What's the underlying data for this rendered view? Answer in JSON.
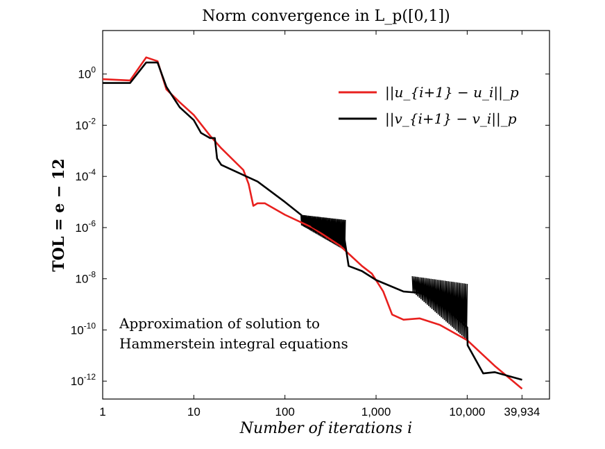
{
  "chart_data": {
    "type": "line",
    "title": "Norm convergence in L_p([0,1])",
    "xlabel": "Number of iterations i",
    "ylabel": "TOL = e − 12",
    "xscale": "log",
    "yscale": "log",
    "xlim": [
      1,
      80000
    ],
    "ylim_exp": [
      -12.7,
      1.7
    ],
    "x_ticks": [
      {
        "value": 1,
        "label": "1"
      },
      {
        "value": 10,
        "label": "10"
      },
      {
        "value": 100,
        "label": "100"
      },
      {
        "value": 1000,
        "label": "1,000"
      },
      {
        "value": 10000,
        "label": "10,000"
      },
      {
        "value": 39934,
        "label": "39,934"
      }
    ],
    "y_ticks": [
      {
        "exp": 0,
        "base": "10",
        "sup": "0"
      },
      {
        "exp": -2,
        "base": "10",
        "sup": "-2"
      },
      {
        "exp": -4,
        "base": "10",
        "sup": "-4"
      },
      {
        "exp": -6,
        "base": "10",
        "sup": "-6"
      },
      {
        "exp": -8,
        "base": "10",
        "sup": "-8"
      },
      {
        "exp": -10,
        "base": "10",
        "sup": "-10"
      },
      {
        "exp": -12,
        "base": "10",
        "sup": "-12"
      }
    ],
    "legend_position": "top-right",
    "annotation": [
      "Approximation of solution to",
      "Hammerstein integral equations"
    ],
    "series": [
      {
        "name": "||u_{i+1} − u_i||_p",
        "color": "#e8201e",
        "log10_y_points": [
          [
            1,
            -0.2
          ],
          [
            2,
            -0.25
          ],
          [
            3,
            0.65
          ],
          [
            4,
            0.5
          ],
          [
            5,
            -0.6
          ],
          [
            7,
            -1.1
          ],
          [
            10,
            -1.6
          ],
          [
            15,
            -2.4
          ],
          [
            20,
            -2.9
          ],
          [
            35,
            -3.75
          ],
          [
            40,
            -4.3
          ],
          [
            45,
            -5.15
          ],
          [
            50,
            -5.05
          ],
          [
            60,
            -5.05
          ],
          [
            100,
            -5.5
          ],
          [
            200,
            -6.0
          ],
          [
            400,
            -6.7
          ],
          [
            700,
            -7.5
          ],
          [
            900,
            -7.8
          ],
          [
            1200,
            -8.5
          ],
          [
            1500,
            -9.4
          ],
          [
            2000,
            -9.6
          ],
          [
            3000,
            -9.55
          ],
          [
            5000,
            -9.8
          ],
          [
            10000,
            -10.4
          ],
          [
            20000,
            -11.4
          ],
          [
            40000,
            -12.3
          ]
        ]
      },
      {
        "name": "||v_{i+1} − v_i||_p",
        "color": "#000000",
        "log10_y_points": [
          [
            1,
            -0.35
          ],
          [
            2,
            -0.35
          ],
          [
            3,
            0.45
          ],
          [
            4,
            0.45
          ],
          [
            5,
            -0.5
          ],
          [
            7,
            -1.3
          ],
          [
            10,
            -1.8
          ],
          [
            12,
            -2.3
          ],
          [
            15,
            -2.5
          ],
          [
            17,
            -2.5
          ],
          [
            18,
            -3.3
          ],
          [
            20,
            -3.55
          ],
          [
            50,
            -4.2
          ],
          [
            100,
            -5.0
          ],
          [
            150,
            -5.5
          ],
          [
            200,
            -5.95
          ],
          [
            300,
            -6.3
          ],
          [
            450,
            -6.45
          ],
          [
            500,
            -7.5
          ],
          [
            700,
            -7.7
          ],
          [
            1000,
            -8.05
          ],
          [
            2000,
            -8.5
          ],
          [
            3000,
            -8.55
          ],
          [
            5000,
            -8.8
          ],
          [
            7000,
            -9.4
          ],
          [
            10000,
            -9.9
          ],
          [
            10100,
            -10.6
          ],
          [
            15000,
            -11.7
          ],
          [
            20000,
            -11.65
          ],
          [
            40000,
            -11.95
          ]
        ]
      }
    ],
    "oscillation_bands": [
      {
        "series": 1,
        "x_start": 150,
        "x_end": 460,
        "upper_exp": [
          -5.5,
          -5.7
        ],
        "lower_exp": [
          -5.9,
          -6.9
        ]
      },
      {
        "series": 1,
        "x_start": 2500,
        "x_end": 10000,
        "upper_exp": [
          -7.9,
          -8.2
        ],
        "lower_exp": [
          -8.5,
          -10.4
        ]
      }
    ]
  }
}
